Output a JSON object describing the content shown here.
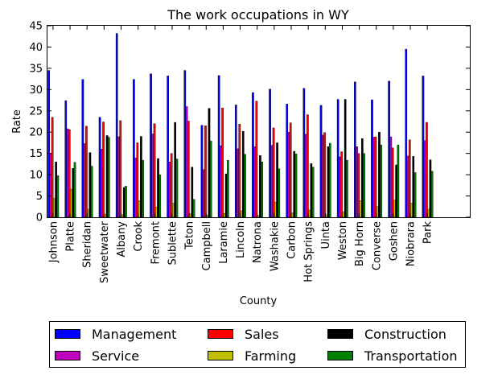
{
  "chart_data": {
    "type": "bar",
    "title": "The work occupations in WY",
    "xlabel": "County",
    "ylabel": "Rate",
    "ylim": [
      0,
      45
    ],
    "yticks": [
      0,
      5,
      10,
      15,
      20,
      25,
      30,
      35,
      40,
      45
    ],
    "categories": [
      "Johnson",
      "Platte",
      "Sheridan",
      "Sweetwater",
      "Albany",
      "Crook",
      "Fremont",
      "Sublette",
      "Teton",
      "Campbell",
      "Laramie",
      "Lincoln",
      "Natrona",
      "Washakie",
      "Carbon",
      "Hot Springs",
      "Uinta",
      "Weston",
      "Big Horn",
      "Converse",
      "Goshen",
      "Niobrara",
      "Park"
    ],
    "series": [
      {
        "name": "Management",
        "color": "#0000ff",
        "values": [
          34.5,
          27.4,
          32.4,
          23.5,
          43.2,
          32.4,
          33.7,
          33.2,
          34.5,
          21.6,
          33.3,
          26.4,
          29.3,
          30.1,
          26.6,
          30.3,
          26.3,
          27.7,
          31.8,
          27.6,
          32.0,
          39.5,
          33.2
        ]
      },
      {
        "name": "Service",
        "color": "#bf00bf",
        "values": [
          15.0,
          20.8,
          17.3,
          16.0,
          18.9,
          13.9,
          19.6,
          13.0,
          26.0,
          11.2,
          16.8,
          16.1,
          16.6,
          16.9,
          20.0,
          19.5,
          19.3,
          14.2,
          16.6,
          18.8,
          18.9,
          14.4,
          18.0
        ]
      },
      {
        "name": "Sales",
        "color": "#ff0000",
        "values": [
          23.5,
          20.6,
          21.4,
          22.4,
          22.7,
          17.5,
          22.0,
          15.0,
          22.6,
          21.5,
          25.7,
          21.9,
          27.3,
          21.0,
          22.2,
          24.1,
          19.9,
          15.4,
          15.0,
          18.9,
          16.3,
          18.2,
          22.3
        ]
      },
      {
        "name": "Farming",
        "color": "#bfbf00",
        "values": [
          4.4,
          6.6,
          1.9,
          0.7,
          0.6,
          3.9,
          2.4,
          3.3,
          0.8,
          0.5,
          0.9,
          1.5,
          0.4,
          3.5,
          1.0,
          1.7,
          0.6,
          1.3,
          3.9,
          2.5,
          4.0,
          3.3,
          1.9
        ]
      },
      {
        "name": "Construction",
        "color": "#000000",
        "values": [
          13.0,
          11.5,
          15.2,
          19.2,
          7.0,
          19.0,
          13.8,
          22.3,
          11.8,
          25.6,
          10.2,
          20.2,
          14.5,
          17.5,
          15.5,
          12.6,
          16.6,
          27.7,
          18.5,
          20.0,
          12.3,
          14.3,
          13.5
        ]
      },
      {
        "name": "Transportation",
        "color": "#008000",
        "values": [
          9.8,
          12.9,
          12.0,
          18.8,
          7.3,
          13.4,
          10.0,
          13.7,
          4.2,
          17.9,
          13.4,
          14.8,
          13.0,
          11.4,
          14.9,
          11.8,
          17.4,
          13.4,
          15.0,
          17.0,
          17.0,
          10.5,
          10.8
        ]
      }
    ],
    "grid": false,
    "legend_position": "bottom"
  }
}
